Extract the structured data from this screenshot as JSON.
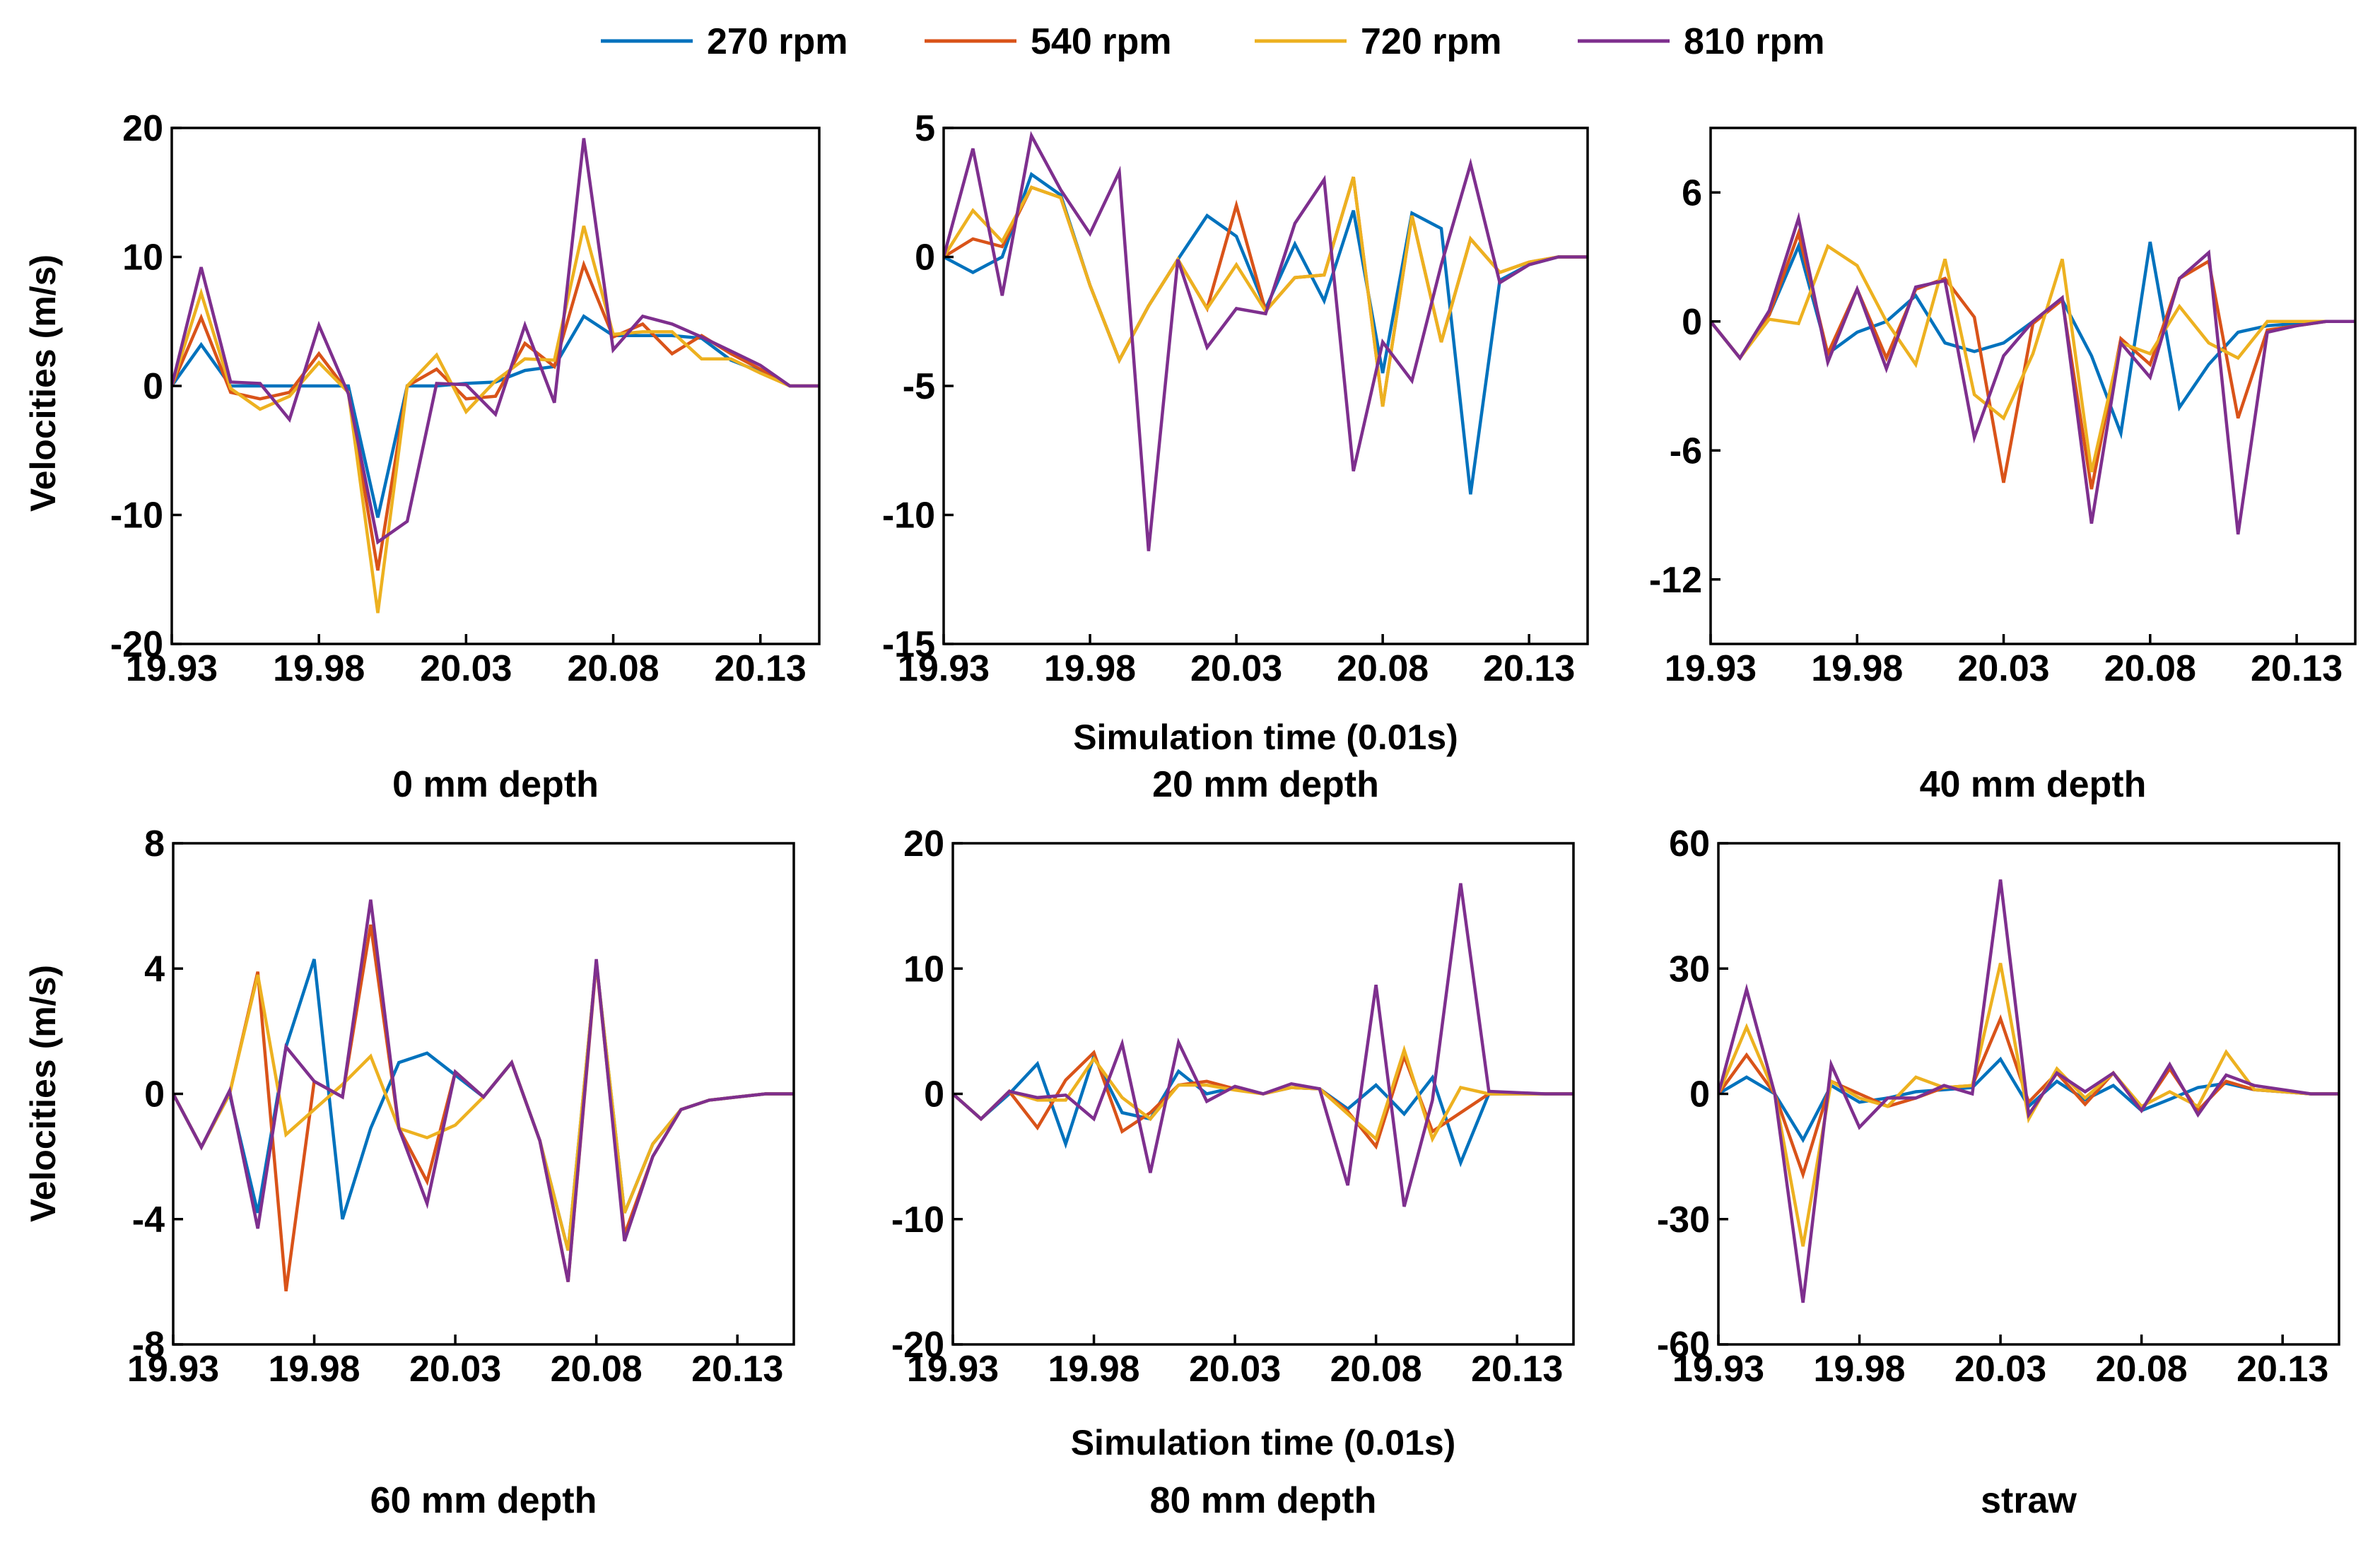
{
  "legend": {
    "placement": "top-center",
    "entries": [
      {
        "label": "270 rpm",
        "color": "#0072BD"
      },
      {
        "label": "540 rpm",
        "color": "#D95319"
      },
      {
        "label": "720 rpm",
        "color": "#EDB120"
      },
      {
        "label": "810 rpm",
        "color": "#7E2F8E"
      }
    ]
  },
  "shared": {
    "ylabel": "Velocities (m/s)",
    "xlabel": "Simulation time (0.01s)",
    "x": [
      19.93,
      19.94,
      19.95,
      19.96,
      19.97,
      19.98,
      19.99,
      20.0,
      20.01,
      20.02,
      20.03,
      20.04,
      20.05,
      20.06,
      20.07,
      20.08,
      20.09,
      20.1,
      20.11,
      20.12,
      20.13,
      20.14,
      20.15
    ],
    "xtick_labels": [
      "19.93",
      "19.98",
      "20.03",
      "20.08",
      "20.13"
    ],
    "xticks": [
      19.93,
      19.98,
      20.03,
      20.08,
      20.13
    ],
    "xlim": [
      19.93,
      20.15
    ]
  },
  "chart_data": [
    {
      "type": "line",
      "title": "0 mm depth",
      "xlabel": "",
      "ylabel": "Velocities (m/s)",
      "ylim": [
        -20,
        20
      ],
      "yticks": [
        -20,
        -10,
        0,
        10,
        20
      ],
      "ytick_labels": [
        "-20",
        "-10",
        "0",
        "10",
        "20"
      ],
      "series": [
        {
          "name": "270 rpm",
          "values": [
            0,
            3.2,
            0,
            0,
            0,
            0,
            0,
            -10.2,
            0,
            0,
            0.2,
            0.3,
            1.2,
            1.5,
            5.4,
            3.9,
            3.9,
            3.9,
            3.7,
            2,
            1.1,
            0,
            0
          ]
        },
        {
          "name": "540 rpm",
          "values": [
            0,
            5.3,
            -0.5,
            -1,
            -0.5,
            2.5,
            -0.5,
            -14.3,
            0,
            1.3,
            -1,
            -0.8,
            3.3,
            1.5,
            9.4,
            3.8,
            4.8,
            2.5,
            3.9,
            2.5,
            1.3,
            0,
            0
          ]
        },
        {
          "name": "720 rpm",
          "values": [
            0,
            7.2,
            -0.2,
            -1.8,
            -0.8,
            1.8,
            -0.5,
            -17.6,
            0,
            2.4,
            -2,
            0.4,
            2.1,
            2,
            12.4,
            4,
            4.2,
            4.2,
            2.1,
            2.1,
            1,
            0,
            0
          ]
        },
        {
          "name": "810 rpm",
          "values": [
            0,
            9.2,
            0.3,
            0.2,
            -2.6,
            4.7,
            -0.6,
            -12.1,
            -10.5,
            0.2,
            0.1,
            -2.2,
            4.7,
            -1.3,
            19.2,
            2.8,
            5.4,
            4.8,
            3.8,
            2.7,
            1.6,
            0,
            0
          ]
        }
      ]
    },
    {
      "type": "line",
      "title": "20 mm depth",
      "xlabel": "Simulation time (0.01s)",
      "ylabel": "",
      "ylim": [
        -15,
        5
      ],
      "yticks": [
        -15,
        -10,
        -5,
        0,
        5
      ],
      "ytick_labels": [
        "-15",
        "-10",
        "-5",
        "0",
        "5"
      ],
      "series": [
        {
          "name": "270 rpm",
          "values": [
            0,
            -0.6,
            0,
            3.2,
            2.4,
            -1.1,
            -4,
            -1.9,
            -0.1,
            1.6,
            0.8,
            -2,
            0.5,
            -1.7,
            1.8,
            -4.5,
            1.7,
            1.1,
            -9.2,
            -0.9,
            -0.3,
            0,
            0
          ]
        },
        {
          "name": "540 rpm",
          "values": [
            0,
            0.7,
            0.4,
            2.7,
            2.3,
            -1.1,
            -4,
            -1.9,
            -0.1,
            -2,
            2,
            -2.1,
            -0.8,
            -0.7,
            3.1,
            -5.8,
            1.6,
            -3.3,
            0.7,
            -0.6,
            -0.2,
            0,
            0
          ]
        },
        {
          "name": "720 rpm",
          "values": [
            0,
            1.8,
            0.6,
            2.7,
            2.3,
            -1.1,
            -4,
            -1.9,
            -0.1,
            -2,
            -0.3,
            -2.1,
            -0.8,
            -0.7,
            3.1,
            -5.8,
            1.6,
            -3.3,
            0.7,
            -0.6,
            -0.2,
            0,
            0
          ]
        },
        {
          "name": "810 rpm",
          "values": [
            0,
            4.2,
            -1.5,
            4.7,
            2.6,
            0.9,
            3.3,
            -11.4,
            -0.1,
            -3.5,
            -2,
            -2.2,
            1.3,
            3,
            -8.3,
            -3.3,
            -4.8,
            -0.3,
            3.6,
            -1,
            -0.3,
            0,
            0
          ]
        }
      ]
    },
    {
      "type": "line",
      "title": "40 mm depth",
      "xlabel": "",
      "ylabel": "",
      "ylim": [
        -15,
        9
      ],
      "yticks": [
        -12,
        -6,
        0,
        6
      ],
      "ytick_labels": [
        "-12",
        "-6",
        "0",
        "6"
      ],
      "series": [
        {
          "name": "270 rpm",
          "values": [
            0,
            -1.7,
            0.3,
            3.5,
            -1.5,
            -0.5,
            0,
            1.2,
            -1,
            -1.4,
            -1,
            0,
            1,
            -1.6,
            -5.2,
            3.7,
            -4,
            -2,
            -0.5,
            -0.2,
            -0.1,
            0,
            0
          ]
        },
        {
          "name": "540 rpm",
          "values": [
            0,
            -1.7,
            0.3,
            4.1,
            -1.5,
            1.5,
            -1.7,
            1.5,
            2,
            0.2,
            -7.5,
            -0.1,
            1,
            -7.8,
            -0.8,
            -2,
            2,
            2.8,
            -4.5,
            -0.4,
            -0.2,
            0,
            0
          ]
        },
        {
          "name": "720 rpm",
          "values": [
            0,
            -1.7,
            0.1,
            -0.1,
            3.5,
            2.6,
            0,
            -2,
            2.9,
            -3.4,
            -4.5,
            -1.5,
            2.9,
            -7,
            -1,
            -1.5,
            0.7,
            -1,
            -1.7,
            0,
            0,
            0,
            0
          ]
        },
        {
          "name": "810 rpm",
          "values": [
            0,
            -1.7,
            0.5,
            4.8,
            -1.9,
            1.5,
            -2.2,
            1.6,
            1.9,
            -5.4,
            -1.6,
            0,
            1.1,
            -9.4,
            -1,
            -2.6,
            2,
            3.2,
            -9.9,
            -0.5,
            -0.2,
            0,
            0
          ]
        }
      ]
    },
    {
      "type": "line",
      "title": "60 mm depth",
      "xlabel": "",
      "ylabel": "Velocities (m/s)",
      "ylim": [
        -8,
        8
      ],
      "yticks": [
        -8,
        -4,
        0,
        4,
        8
      ],
      "ytick_labels": [
        "-8",
        "-4",
        "0",
        "4",
        "8"
      ],
      "series": [
        {
          "name": "270 rpm",
          "values": [
            0,
            -1.7,
            0,
            -3.8,
            1.5,
            4.3,
            -4,
            -1.1,
            1,
            1.3,
            0.6,
            -0.1,
            1,
            -1.5,
            -5,
            4.2,
            -3.8,
            -1.6,
            -0.5,
            -0.2,
            -0.1,
            0,
            0
          ]
        },
        {
          "name": "540 rpm",
          "values": [
            0,
            -1.7,
            0,
            3.9,
            -6.3,
            0.4,
            -0.1,
            5.4,
            -1.1,
            -2.8,
            0.7,
            -0.1,
            1,
            -1.5,
            -6,
            4.2,
            -4.5,
            -2,
            -0.5,
            -0.2,
            -0.1,
            0,
            0
          ]
        },
        {
          "name": "720 rpm",
          "values": [
            0,
            -1.7,
            0,
            3.8,
            -1.3,
            -0.5,
            0.3,
            1.2,
            -1.1,
            -1.4,
            -1,
            -0.1,
            1,
            -1.5,
            -5,
            4.2,
            -3.8,
            -1.6,
            -0.5,
            -0.2,
            -0.1,
            0,
            0
          ]
        },
        {
          "name": "810 rpm",
          "values": [
            0,
            -1.7,
            0.1,
            -4.3,
            1.5,
            0.4,
            -0.1,
            6.2,
            -1.1,
            -3.5,
            0.7,
            -0.1,
            1,
            -1.5,
            -6,
            4.3,
            -4.7,
            -2,
            -0.5,
            -0.2,
            -0.1,
            0,
            0
          ]
        }
      ]
    },
    {
      "type": "line",
      "title": "80 mm depth",
      "xlabel": "Simulation time (0.01s)",
      "ylabel": "",
      "ylim": [
        -20,
        20
      ],
      "yticks": [
        -20,
        -10,
        0,
        10,
        20
      ],
      "ytick_labels": [
        "-20",
        "-10",
        "0",
        "10",
        "20"
      ],
      "series": [
        {
          "name": "270 rpm",
          "values": [
            0,
            -2,
            0,
            2.4,
            -4,
            3,
            -1.5,
            -2,
            1.8,
            0,
            0.5,
            0,
            0.5,
            0.4,
            -1.2,
            0.7,
            -1.6,
            1.3,
            -5.5,
            0,
            0,
            0,
            0
          ]
        },
        {
          "name": "540 rpm",
          "values": [
            0,
            -2,
            0.2,
            -2.7,
            1.1,
            3.3,
            -3,
            -1.5,
            0.7,
            1,
            0.4,
            0,
            0.5,
            0.4,
            -1.4,
            -4.2,
            3,
            -3,
            -1.5,
            0,
            0,
            0,
            0
          ]
        },
        {
          "name": "720 rpm",
          "values": [
            0,
            -2,
            0.2,
            -0.5,
            -0.5,
            2.8,
            -0.3,
            -2,
            0.7,
            0.7,
            0.3,
            0,
            0.5,
            0.4,
            -1.6,
            -3.6,
            3.5,
            -3.6,
            0.5,
            0,
            0,
            0,
            0
          ]
        },
        {
          "name": "810 rpm",
          "values": [
            0,
            -2,
            0.2,
            -0.3,
            -0.1,
            -2,
            4,
            -6.3,
            4.1,
            -0.6,
            0.6,
            0,
            0.8,
            0.4,
            -7.3,
            8.7,
            -9,
            -0.5,
            16.8,
            0.2,
            0.1,
            0,
            0
          ]
        }
      ]
    },
    {
      "type": "line",
      "title": "straw",
      "xlabel": "",
      "ylabel": "",
      "ylim": [
        -60,
        60
      ],
      "yticks": [
        -60,
        -30,
        0,
        30,
        60
      ],
      "ytick_labels": [
        "-60",
        "-30",
        "0",
        "30",
        "60"
      ],
      "series": [
        {
          "name": "270 rpm",
          "values": [
            0,
            4,
            0,
            -11,
            2,
            -2,
            -1,
            0.5,
            1,
            1.5,
            8.3,
            -3,
            3,
            -1.4,
            2,
            -4,
            -1.3,
            1.5,
            2.5,
            1,
            0.5,
            0,
            0
          ]
        },
        {
          "name": "540 rpm",
          "values": [
            0,
            9.3,
            0,
            -19.3,
            3,
            0,
            -3,
            -1,
            1.5,
            2,
            18,
            -2,
            5,
            -2.5,
            5,
            -4,
            6,
            -4,
            3,
            1,
            0.5,
            0,
            0
          ]
        },
        {
          "name": "720 rpm",
          "values": [
            0,
            16,
            0,
            -36.5,
            3,
            -1,
            -3,
            4,
            1.5,
            2,
            31.3,
            -6,
            6,
            -1,
            5,
            -3,
            0.5,
            -3,
            10,
            1,
            0.5,
            0,
            0
          ]
        },
        {
          "name": "810 rpm",
          "values": [
            0,
            25,
            0,
            -50,
            7,
            -8,
            -1,
            -1,
            2,
            0,
            51.3,
            -5,
            5,
            0.5,
            5,
            -4,
            7,
            -5,
            4.5,
            2,
            1,
            0,
            0
          ]
        }
      ]
    }
  ]
}
